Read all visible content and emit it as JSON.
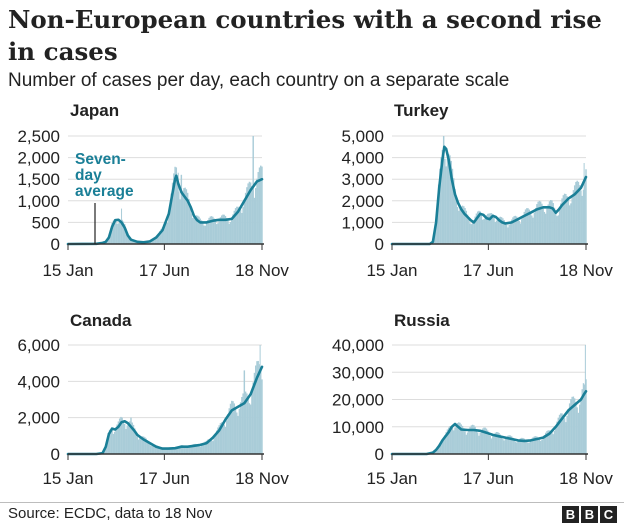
{
  "header": {
    "title": "Non-European countries with a second rise in cases",
    "subtitle": "Number of cases per day, each country on a separate scale"
  },
  "footer": {
    "source": "Source: ECDC, data to 18 Nov",
    "logo_letters": [
      "B",
      "B",
      "C"
    ]
  },
  "colors": {
    "line": "#1a7f97",
    "bars": "#a9ccd8",
    "axis": "#333333",
    "grid": "#dddddd",
    "text": "#222222"
  },
  "chart_data": [
    {
      "type": "bar",
      "title": "Japan",
      "x_ticks": [
        "15 Jan",
        "17 Jun",
        "18 Nov"
      ],
      "y_ticks": [
        "0",
        "500",
        "1,000",
        "1,500",
        "2,000",
        "2,500"
      ],
      "ylim": [
        0,
        2500
      ],
      "x_days": [
        0,
        153,
        308
      ],
      "annotation": [
        "Seven-",
        "day",
        "average"
      ],
      "seven_day_average": [
        [
          0,
          0
        ],
        [
          45,
          5
        ],
        [
          55,
          25
        ],
        [
          60,
          50
        ],
        [
          65,
          150
        ],
        [
          70,
          400
        ],
        [
          75,
          550
        ],
        [
          80,
          560
        ],
        [
          85,
          500
        ],
        [
          90,
          380
        ],
        [
          95,
          200
        ],
        [
          100,
          100
        ],
        [
          110,
          50
        ],
        [
          120,
          40
        ],
        [
          130,
          60
        ],
        [
          140,
          150
        ],
        [
          150,
          320
        ],
        [
          160,
          700
        ],
        [
          165,
          1100
        ],
        [
          170,
          1500
        ],
        [
          172,
          1580
        ],
        [
          175,
          1400
        ],
        [
          180,
          1200
        ],
        [
          185,
          1100
        ],
        [
          190,
          1000
        ],
        [
          195,
          850
        ],
        [
          200,
          650
        ],
        [
          205,
          550
        ],
        [
          210,
          500
        ],
        [
          220,
          500
        ],
        [
          230,
          540
        ],
        [
          240,
          560
        ],
        [
          250,
          560
        ],
        [
          260,
          580
        ],
        [
          270,
          750
        ],
        [
          280,
          1000
        ],
        [
          290,
          1250
        ],
        [
          300,
          1450
        ],
        [
          308,
          1500
        ]
      ],
      "daily_peaks": [
        [
          85,
          820
        ],
        [
          175,
          1650
        ],
        [
          180,
          1600
        ],
        [
          294,
          2650
        ]
      ]
    },
    {
      "type": "bar",
      "title": "Turkey",
      "x_ticks": [
        "15 Jan",
        "17 Jun",
        "18 Nov"
      ],
      "y_ticks": [
        "0",
        "1,000",
        "2,000",
        "3,000",
        "4,000",
        "5,000"
      ],
      "ylim": [
        0,
        5000
      ],
      "x_days": [
        0,
        153,
        308
      ],
      "seven_day_average": [
        [
          0,
          0
        ],
        [
          60,
          0
        ],
        [
          65,
          100
        ],
        [
          70,
          1000
        ],
        [
          75,
          2600
        ],
        [
          80,
          3900
        ],
        [
          83,
          4500
        ],
        [
          86,
          4400
        ],
        [
          90,
          3900
        ],
        [
          95,
          3000
        ],
        [
          100,
          2300
        ],
        [
          105,
          1900
        ],
        [
          110,
          1600
        ],
        [
          115,
          1400
        ],
        [
          120,
          1250
        ],
        [
          125,
          1100
        ],
        [
          130,
          1000
        ],
        [
          135,
          1200
        ],
        [
          140,
          1400
        ],
        [
          145,
          1350
        ],
        [
          150,
          1200
        ],
        [
          155,
          1150
        ],
        [
          160,
          1300
        ],
        [
          165,
          1250
        ],
        [
          170,
          1100
        ],
        [
          175,
          1000
        ],
        [
          180,
          950
        ],
        [
          190,
          1000
        ],
        [
          200,
          1150
        ],
        [
          210,
          1300
        ],
        [
          220,
          1450
        ],
        [
          230,
          1600
        ],
        [
          240,
          1700
        ],
        [
          250,
          1700
        ],
        [
          255,
          1650
        ],
        [
          260,
          1450
        ],
        [
          265,
          1600
        ],
        [
          270,
          1800
        ],
        [
          280,
          2100
        ],
        [
          290,
          2300
        ],
        [
          300,
          2600
        ],
        [
          308,
          3100
        ]
      ],
      "daily_peaks": [
        [
          82,
          5000
        ],
        [
          305,
          3750
        ]
      ]
    },
    {
      "type": "bar",
      "title": "Canada",
      "x_ticks": [
        "15 Jan",
        "17 Jun",
        "18 Nov"
      ],
      "y_ticks": [
        "0",
        "2,000",
        "4,000",
        "6,000"
      ],
      "ylim": [
        0,
        6000
      ],
      "x_days": [
        0,
        153,
        308
      ],
      "seven_day_average": [
        [
          0,
          0
        ],
        [
          45,
          0
        ],
        [
          55,
          50
        ],
        [
          60,
          400
        ],
        [
          65,
          1100
        ],
        [
          70,
          1400
        ],
        [
          75,
          1350
        ],
        [
          80,
          1500
        ],
        [
          85,
          1750
        ],
        [
          90,
          1800
        ],
        [
          95,
          1700
        ],
        [
          100,
          1500
        ],
        [
          105,
          1300
        ],
        [
          110,
          1050
        ],
        [
          120,
          800
        ],
        [
          130,
          600
        ],
        [
          140,
          400
        ],
        [
          150,
          300
        ],
        [
          160,
          300
        ],
        [
          170,
          320
        ],
        [
          180,
          400
        ],
        [
          190,
          400
        ],
        [
          200,
          450
        ],
        [
          210,
          500
        ],
        [
          220,
          600
        ],
        [
          230,
          900
        ],
        [
          240,
          1300
        ],
        [
          250,
          1900
        ],
        [
          260,
          2400
        ],
        [
          270,
          2600
        ],
        [
          280,
          2800
        ],
        [
          290,
          3300
        ],
        [
          300,
          4200
        ],
        [
          308,
          4800
        ]
      ],
      "daily_peaks": [
        [
          100,
          2000
        ],
        [
          280,
          4600
        ],
        [
          305,
          6000
        ]
      ]
    },
    {
      "type": "bar",
      "title": "Russia",
      "x_ticks": [
        "15 Jan",
        "17 Jun",
        "18 Nov"
      ],
      "y_ticks": [
        "0",
        "10,000",
        "20,000",
        "30,000",
        "40,000"
      ],
      "ylim": [
        0,
        40000
      ],
      "x_days": [
        0,
        153,
        308
      ],
      "seven_day_average": [
        [
          0,
          0
        ],
        [
          55,
          0
        ],
        [
          65,
          500
        ],
        [
          70,
          1500
        ],
        [
          75,
          3000
        ],
        [
          80,
          5000
        ],
        [
          85,
          6500
        ],
        [
          90,
          8000
        ],
        [
          95,
          10000
        ],
        [
          100,
          11000
        ],
        [
          105,
          10000
        ],
        [
          110,
          9000
        ],
        [
          120,
          8800
        ],
        [
          130,
          8800
        ],
        [
          140,
          8500
        ],
        [
          150,
          7800
        ],
        [
          160,
          7000
        ],
        [
          170,
          6500
        ],
        [
          180,
          6000
        ],
        [
          190,
          5500
        ],
        [
          200,
          5000
        ],
        [
          210,
          4800
        ],
        [
          220,
          5000
        ],
        [
          230,
          5500
        ],
        [
          240,
          6000
        ],
        [
          250,
          7500
        ],
        [
          260,
          10000
        ],
        [
          270,
          13000
        ],
        [
          280,
          16000
        ],
        [
          290,
          18000
        ],
        [
          300,
          20000
        ],
        [
          305,
          22000
        ],
        [
          308,
          23000
        ]
      ],
      "daily_peaks": [
        [
          300,
          20500
        ],
        [
          306,
          25500
        ],
        [
          307,
          40000
        ]
      ]
    }
  ]
}
